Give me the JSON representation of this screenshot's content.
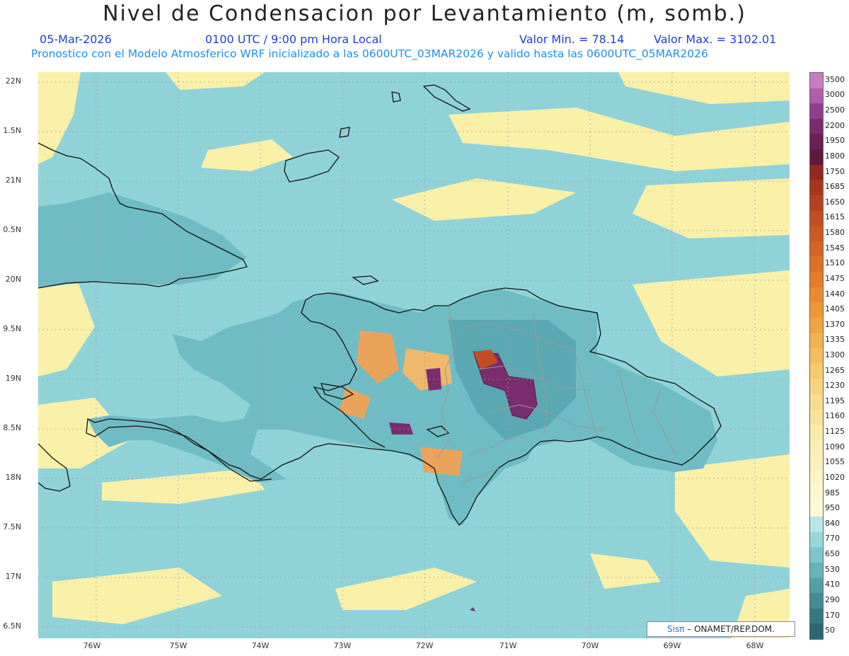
{
  "title": "Nivel de Condensacion por Levantamiento (m, somb.)",
  "header": {
    "date": "05-Mar-2026",
    "time": "0100 UTC / 9:00 pm Hora Local",
    "min": "Valor Min. = 78.14",
    "max": "Valor Max. = 3102.01",
    "forecast": "Pronostico con el Modelo Atmosferico WRF inicializado a las 0600UTC_03MAR2026 y valido hasta las  0600UTC_05MAR2026"
  },
  "lat_labels": [
    "22N",
    "1.5N",
    "21N",
    "0.5N",
    "20N",
    "9.5N",
    "19N",
    "8.5N",
    "18N",
    "7.5N",
    "17N",
    "6.5N"
  ],
  "lon_labels": [
    "76W",
    "75W",
    "74W",
    "73W",
    "72W",
    "71W",
    "70W",
    "69W",
    "68W"
  ],
  "legend": {
    "levels": [
      "3500",
      "3000",
      "2500",
      "2200",
      "1950",
      "1800",
      "1750",
      "1685",
      "1650",
      "1615",
      "1580",
      "1545",
      "1510",
      "1475",
      "1440",
      "1405",
      "1370",
      "1335",
      "1300",
      "1265",
      "1230",
      "1195",
      "1160",
      "1125",
      "1090",
      "1055",
      "1020",
      "985",
      "950",
      "840",
      "770",
      "650",
      "530",
      "410",
      "290",
      "170",
      "50"
    ],
    "colors": [
      "#c77dbf",
      "#b05ea8",
      "#8f3f8e",
      "#7a2d6e",
      "#6a1f55",
      "#5e1a3d",
      "#8e2b1e",
      "#a8361e",
      "#b5401f",
      "#c24d22",
      "#cc5824",
      "#d66426",
      "#de7028",
      "#e47c2c",
      "#e88a32",
      "#ec9838",
      "#efa642",
      "#f1b34f",
      "#f3bf5e",
      "#f5ca6e",
      "#f6d47f",
      "#f7dc8f",
      "#f8e39d",
      "#f9e9aa",
      "#faeeb5",
      "#fbf1bf",
      "#fcf4c8",
      "#fdf6cf",
      "#fdf8d6",
      "#b5e6ea",
      "#98d6dc",
      "#7ec6cd",
      "#67b3bc",
      "#539fa9",
      "#428b97",
      "#357884",
      "#2a6674"
    ]
  },
  "credit": {
    "brand": "Sisπ",
    "text": "– ONAMET/REP.DOM."
  },
  "colors": {
    "sea_base": "#8fd3d9",
    "land_cyan": "#6fbcc4",
    "yellow": "#fbf0a8",
    "orange": "#eaa45a",
    "purple": "#7a2d6e",
    "grid": "#9aa0a6",
    "coast": "#111111",
    "border": "#999999"
  }
}
